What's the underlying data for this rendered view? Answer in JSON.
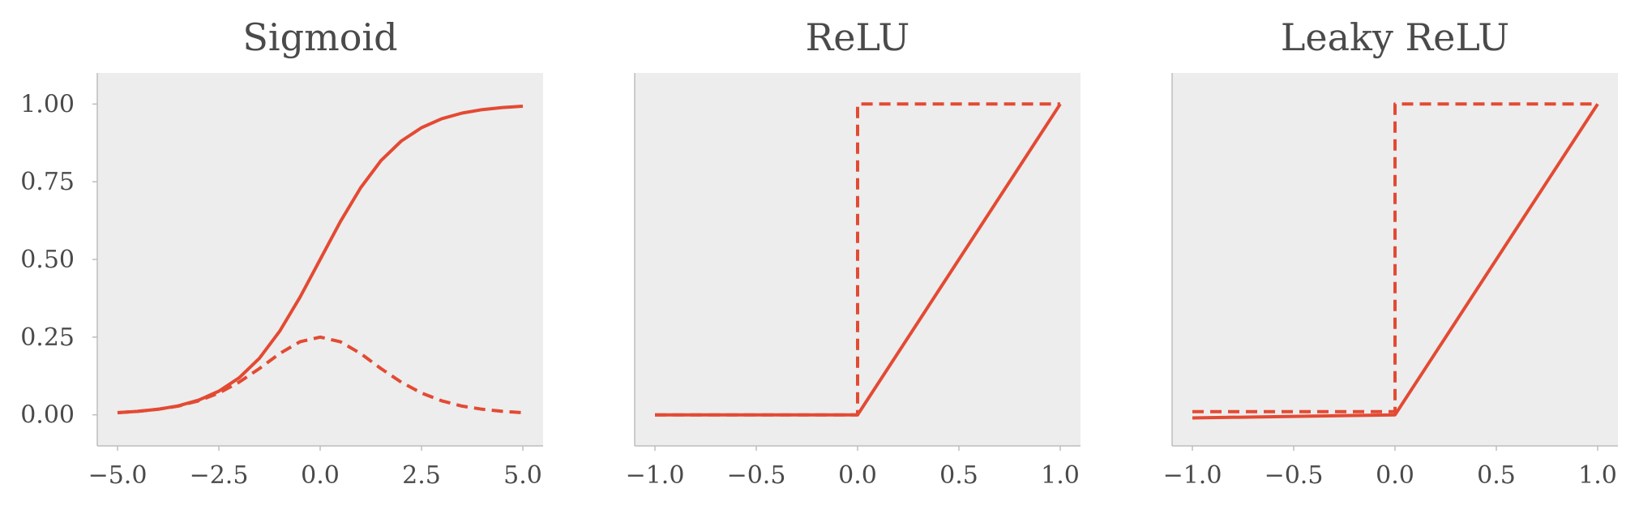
{
  "chart_data": [
    {
      "type": "line",
      "title": "Sigmoid",
      "xlabel": "",
      "ylabel": "",
      "xlim": [
        -5.5,
        5.5
      ],
      "ylim": [
        -0.1,
        1.1
      ],
      "xticks": [
        -5.0,
        -2.5,
        0.0,
        2.5,
        5.0
      ],
      "xtick_labels": [
        "−5.0",
        "−2.5",
        "0.0",
        "2.5",
        "5.0"
      ],
      "yticks": [
        0.0,
        0.25,
        0.5,
        0.75,
        1.0
      ],
      "ytick_labels": [
        "0.00",
        "0.25",
        "0.50",
        "0.75",
        "1.00"
      ],
      "show_y_labels": true,
      "grid": false,
      "series": [
        {
          "style": "solid",
          "x": [
            -5,
            -4.5,
            -4,
            -3.5,
            -3,
            -2.5,
            -2,
            -1.5,
            -1,
            -0.5,
            0,
            0.5,
            1,
            1.5,
            2,
            2.5,
            3,
            3.5,
            4,
            4.5,
            5
          ],
          "y": [
            0.007,
            0.011,
            0.018,
            0.029,
            0.047,
            0.076,
            0.119,
            0.182,
            0.269,
            0.378,
            0.5,
            0.622,
            0.731,
            0.818,
            0.881,
            0.924,
            0.953,
            0.971,
            0.982,
            0.989,
            0.993
          ]
        },
        {
          "style": "dashed",
          "x": [
            -5,
            -4.5,
            -4,
            -3.5,
            -3,
            -2.5,
            -2,
            -1.5,
            -1,
            -0.5,
            0,
            0.5,
            1,
            1.5,
            2,
            2.5,
            3,
            3.5,
            4,
            4.5,
            5
          ],
          "y": [
            0.007,
            0.011,
            0.018,
            0.028,
            0.045,
            0.07,
            0.105,
            0.149,
            0.197,
            0.235,
            0.25,
            0.235,
            0.197,
            0.149,
            0.105,
            0.07,
            0.045,
            0.028,
            0.018,
            0.011,
            0.007
          ]
        }
      ]
    },
    {
      "type": "line",
      "title": "ReLU",
      "xlabel": "",
      "ylabel": "",
      "xlim": [
        -1.1,
        1.1
      ],
      "ylim": [
        -0.1,
        1.1
      ],
      "xticks": [
        -1.0,
        -0.5,
        0.0,
        0.5,
        1.0
      ],
      "xtick_labels": [
        "−1.0",
        "−0.5",
        "0.0",
        "0.5",
        "1.0"
      ],
      "yticks": [],
      "ytick_labels": [],
      "show_y_labels": false,
      "grid": false,
      "series": [
        {
          "style": "solid",
          "x": [
            -1.0,
            0.0,
            1.0
          ],
          "y": [
            0.0,
            0.0,
            1.0
          ]
        },
        {
          "style": "dashed",
          "x": [
            -1.0,
            0.0,
            0.0,
            1.0
          ],
          "y": [
            0.0,
            0.0,
            1.0,
            1.0
          ]
        }
      ]
    },
    {
      "type": "line",
      "title": "Leaky ReLU",
      "xlabel": "",
      "ylabel": "",
      "xlim": [
        -1.1,
        1.1
      ],
      "ylim": [
        -0.1,
        1.1
      ],
      "xticks": [
        -1.0,
        -0.5,
        0.0,
        0.5,
        1.0
      ],
      "xtick_labels": [
        "−1.0",
        "−0.5",
        "0.0",
        "0.5",
        "1.0"
      ],
      "yticks": [],
      "ytick_labels": [],
      "show_y_labels": false,
      "grid": false,
      "series": [
        {
          "style": "solid",
          "x": [
            -1.0,
            0.0,
            1.0
          ],
          "y": [
            -0.01,
            0.0,
            1.0
          ]
        },
        {
          "style": "dashed",
          "x": [
            -1.0,
            0.0,
            0.0,
            1.0
          ],
          "y": [
            0.01,
            0.01,
            1.0,
            1.0
          ]
        }
      ]
    }
  ],
  "colors": {
    "series": "#e34a33",
    "plot_background": "#ededed",
    "axis": "#bdbdbd",
    "text": "#4a4a4a"
  }
}
